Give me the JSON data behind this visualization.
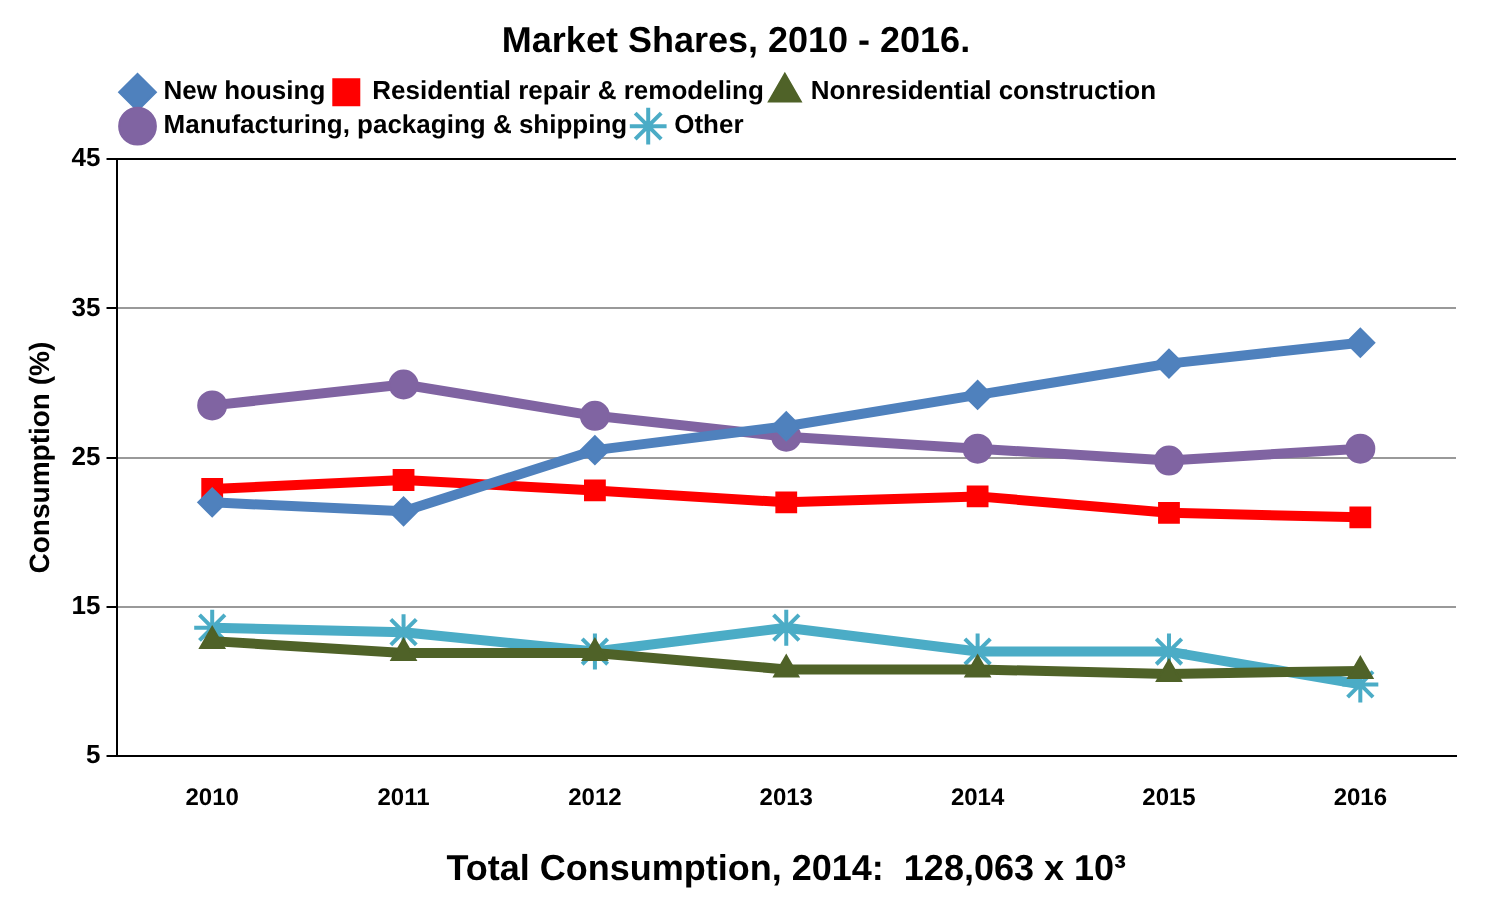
{
  "chart_data": {
    "type": "line",
    "title": "Market Shares, 2010 - 2016.",
    "xlabel": "Total Consumption, 2014:  128,063 x 10³",
    "ylabel": "Consumption (%)",
    "categories": [
      "2010",
      "2011",
      "2012",
      "2013",
      "2014",
      "2015",
      "2016"
    ],
    "series": [
      {
        "name": "New housing",
        "color": "#4f81bd",
        "marker": "diamond",
        "values": [
          22.0,
          21.4,
          25.5,
          27.1,
          29.2,
          31.3,
          32.7
        ]
      },
      {
        "name": "Residential repair & remodeling",
        "color": "#ff0000",
        "marker": "square",
        "values": [
          22.9,
          23.5,
          22.8,
          22.0,
          22.4,
          21.3,
          21.0
        ]
      },
      {
        "name": "Nonresidential construction",
        "color": "#4f6228",
        "marker": "triangle",
        "values": [
          12.7,
          11.9,
          11.9,
          10.8,
          10.8,
          10.5,
          10.7
        ]
      },
      {
        "name": "Manufacturing, packaging & shipping",
        "color": "#8064a2",
        "marker": "circle",
        "values": [
          28.5,
          29.9,
          27.8,
          26.4,
          25.6,
          24.8,
          25.6
        ]
      },
      {
        "name": "Other",
        "color": "#4bacc6",
        "marker": "cross",
        "values": [
          13.6,
          13.3,
          12.0,
          13.6,
          12.0,
          12.0,
          9.8
        ]
      }
    ],
    "ylim": [
      5,
      45
    ],
    "yticks": [
      5,
      15,
      25,
      35,
      45
    ],
    "grid": "y",
    "legend": "top left"
  }
}
